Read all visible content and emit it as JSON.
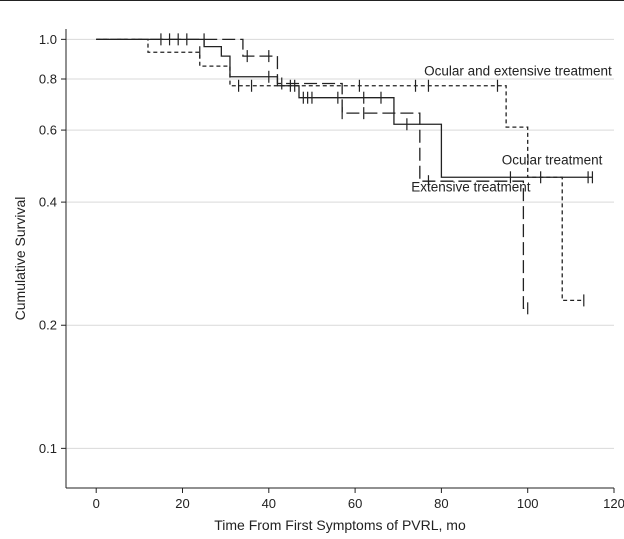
{
  "chart_data": {
    "type": "line",
    "title": "",
    "xlabel": "Time From First Symptoms of PVRL, mo",
    "ylabel": "Cumulative Survival",
    "xlim": [
      -7,
      120
    ],
    "ylim": [
      0.08,
      1.06
    ],
    "yscale": "log",
    "x_ticks": [
      0,
      20,
      40,
      60,
      80,
      100,
      120
    ],
    "x_tick_labels": [
      "0",
      "20",
      "40",
      "60",
      "80",
      "100",
      "120"
    ],
    "y_ticks": [
      0.1,
      0.2,
      0.4,
      0.6,
      0.8,
      1.0
    ],
    "y_tick_labels": [
      "0.1",
      "0.2",
      "0.4",
      "0.6",
      "0.8",
      "1.0"
    ],
    "grid": "horizontal",
    "legend": "none",
    "series": [
      {
        "name": "Ocular treatment",
        "style": "solid",
        "steps": [
          [
            0,
            1.0
          ],
          [
            25,
            0.96
          ],
          [
            29,
            0.91
          ],
          [
            31,
            0.81
          ],
          [
            42,
            0.77
          ],
          [
            47,
            0.72
          ],
          [
            69,
            0.62
          ],
          [
            80,
            0.46
          ],
          [
            115,
            0.46
          ]
        ],
        "censored": [
          [
            15,
            1.0
          ],
          [
            17,
            1.0
          ],
          [
            19,
            1.0
          ],
          [
            21,
            1.0
          ],
          [
            40,
            0.81
          ],
          [
            45,
            0.77
          ],
          [
            48,
            0.72
          ],
          [
            49,
            0.72
          ],
          [
            50,
            0.72
          ],
          [
            56,
            0.72
          ],
          [
            62,
            0.72
          ],
          [
            66,
            0.72
          ],
          [
            72,
            0.62
          ],
          [
            96,
            0.46
          ],
          [
            103,
            0.46
          ],
          [
            114,
            0.46
          ],
          [
            115,
            0.46
          ]
        ]
      },
      {
        "name": "Extensive treatment",
        "style": "long-dash",
        "steps": [
          [
            0,
            1.0
          ],
          [
            34,
            0.91
          ],
          [
            42,
            0.78
          ],
          [
            57,
            0.66
          ],
          [
            75,
            0.45
          ],
          [
            99,
            0.22
          ],
          [
            100,
            0.22
          ]
        ],
        "censored": [
          [
            25,
            1.0
          ],
          [
            35,
            0.91
          ],
          [
            40,
            0.91
          ],
          [
            43,
            0.78
          ],
          [
            57,
            0.66
          ],
          [
            62,
            0.66
          ],
          [
            77,
            0.45
          ],
          [
            100,
            0.22
          ]
        ]
      },
      {
        "name": "Ocular and extensive treatment",
        "style": "short-dash",
        "steps": [
          [
            0,
            1.0
          ],
          [
            12,
            0.93
          ],
          [
            24,
            0.86
          ],
          [
            31,
            0.77
          ],
          [
            95,
            0.61
          ],
          [
            100,
            0.46
          ],
          [
            108,
            0.23
          ],
          [
            113,
            0.23
          ]
        ],
        "censored": [
          [
            24,
            0.93
          ],
          [
            33,
            0.77
          ],
          [
            36,
            0.77
          ],
          [
            46,
            0.77
          ],
          [
            61,
            0.77
          ],
          [
            74,
            0.77
          ],
          [
            77,
            0.77
          ],
          [
            93,
            0.77
          ],
          [
            113,
            0.23
          ]
        ]
      }
    ],
    "annotations": [
      {
        "text": "Ocular and extensive treatment",
        "x": 76,
        "y": 0.815
      },
      {
        "text": "Ocular treatment",
        "x": 94,
        "y": 0.495
      },
      {
        "text": "Extensive treatment",
        "x": 73,
        "y": 0.425
      }
    ]
  }
}
